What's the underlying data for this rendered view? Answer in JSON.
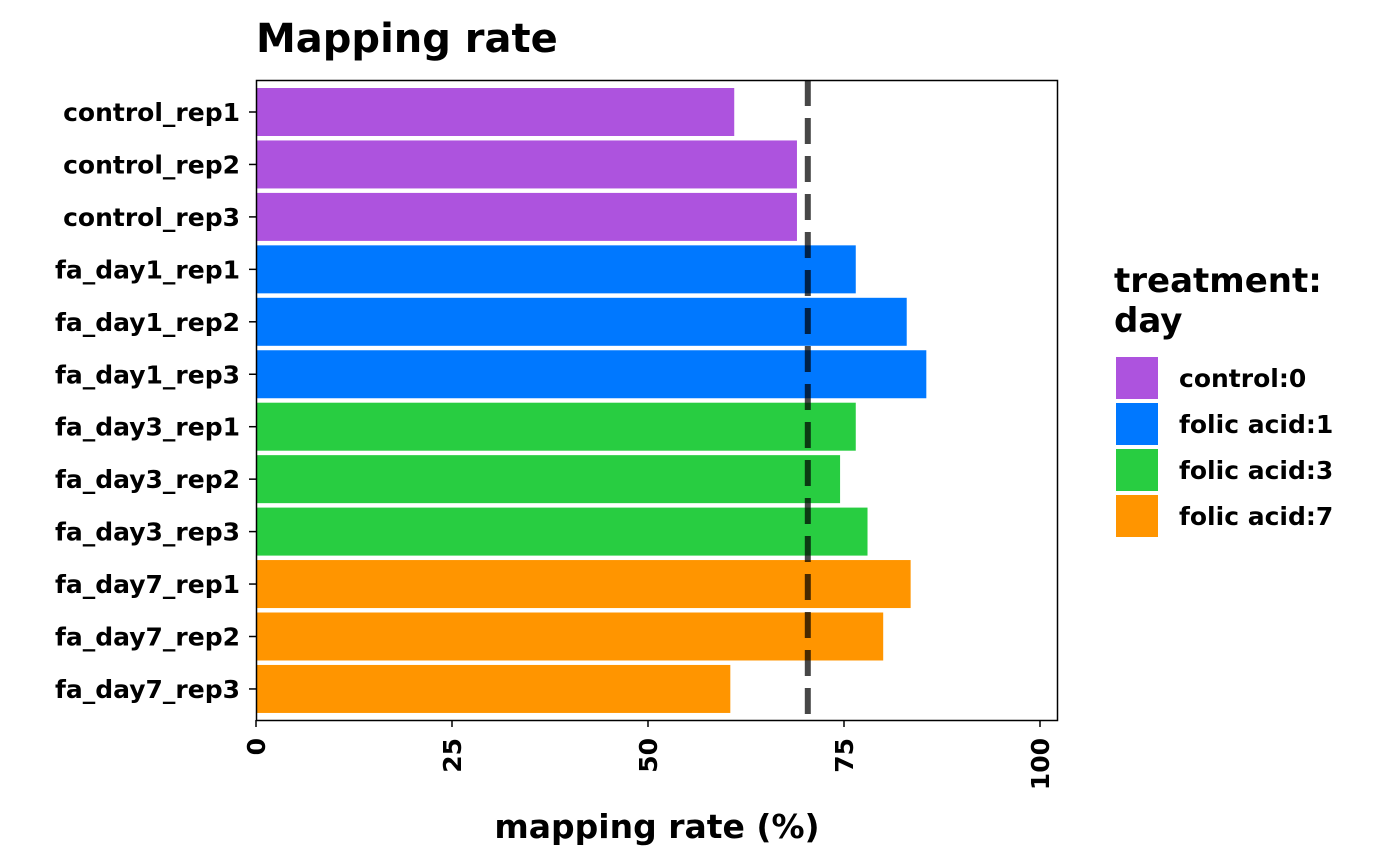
{
  "chart_data": {
    "type": "bar",
    "orientation": "horizontal",
    "title": "Mapping rate",
    "xlabel": "mapping rate (%)",
    "ylabel": "",
    "xlim": [
      0,
      100
    ],
    "x_ticks": [
      0,
      25,
      50,
      75,
      100
    ],
    "reference_line": {
      "x": 70,
      "style": "dashed"
    },
    "grid": false,
    "categories": [
      "control_rep1",
      "control_rep2",
      "control_rep3",
      "fa_day1_rep1",
      "fa_day1_rep2",
      "fa_day1_rep3",
      "fa_day3_rep1",
      "fa_day3_rep2",
      "fa_day3_rep3",
      "fa_day7_rep1",
      "fa_day7_rep2",
      "fa_day7_rep3"
    ],
    "values": [
      61,
      69,
      69,
      76.5,
      83,
      85.5,
      76.5,
      74.5,
      78,
      83.5,
      80,
      60.5
    ],
    "groups": [
      "control:0",
      "control:0",
      "control:0",
      "folic acid:1",
      "folic acid:1",
      "folic acid:1",
      "folic acid:3",
      "folic acid:3",
      "folic acid:3",
      "folic acid:7",
      "folic acid:7",
      "folic acid:7"
    ],
    "legend": {
      "title_line1": "treatment:",
      "title_line2": "day",
      "placement": "right",
      "entries": [
        {
          "label": "control:0",
          "color": "#AD53DE"
        },
        {
          "label": "folic acid:1",
          "color": "#0078FF"
        },
        {
          "label": "folic acid:3",
          "color": "#28CD41"
        },
        {
          "label": "folic acid:7",
          "color": "#FF9500"
        }
      ]
    }
  }
}
